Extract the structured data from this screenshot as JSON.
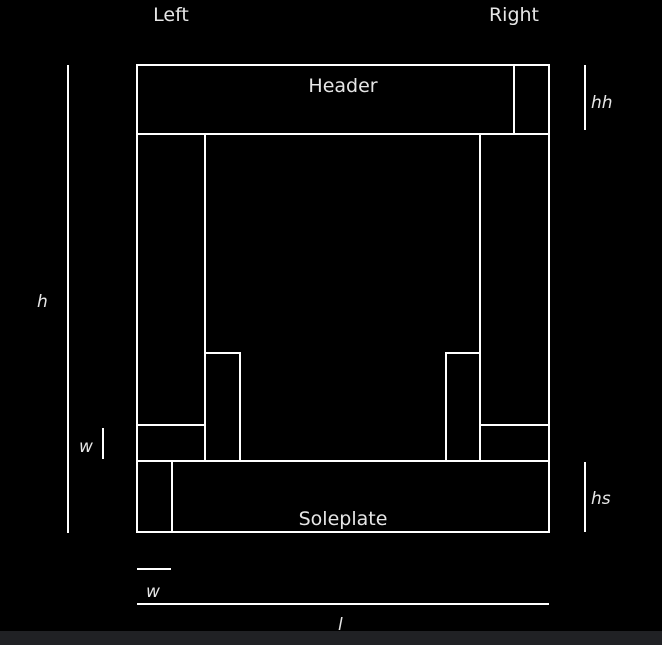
{
  "labels": {
    "left": "Left",
    "right": "Right",
    "header": "Header",
    "soleplate": "Soleplate",
    "h": "h",
    "hh": "hh",
    "hs": "hs",
    "w_side": "w",
    "w_bottom": "w",
    "l": "l"
  },
  "colors": {
    "background": "#000000",
    "line": "#ffffff",
    "text": "#e6e6e6",
    "bottom_bar": "#202124"
  }
}
